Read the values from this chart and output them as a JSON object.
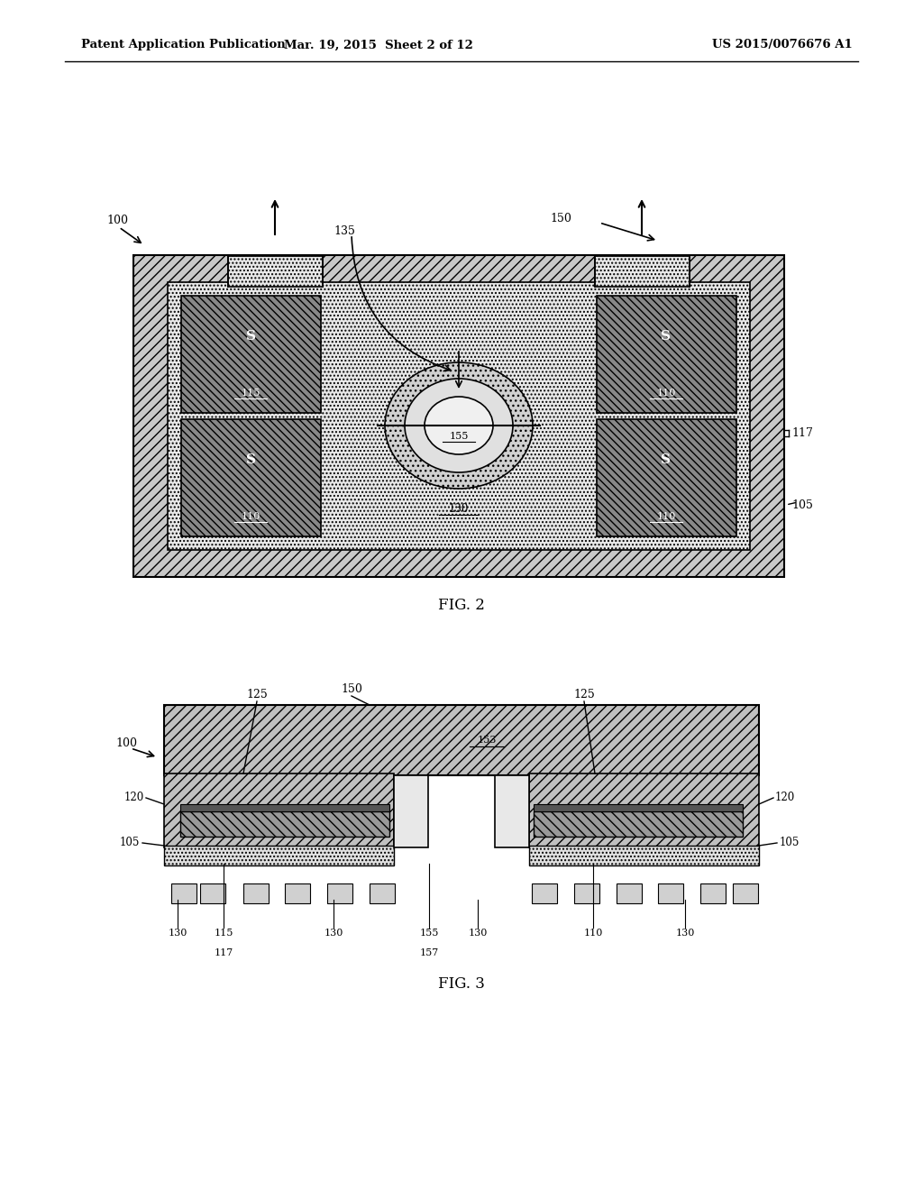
{
  "bg_color": "#ffffff",
  "header_left": "Patent Application Publication",
  "header_mid": "Mar. 19, 2015  Sheet 2 of 12",
  "header_right": "US 2015/0076676 A1",
  "fig2_caption": "FIG. 2",
  "fig3_caption": "FIG. 3"
}
